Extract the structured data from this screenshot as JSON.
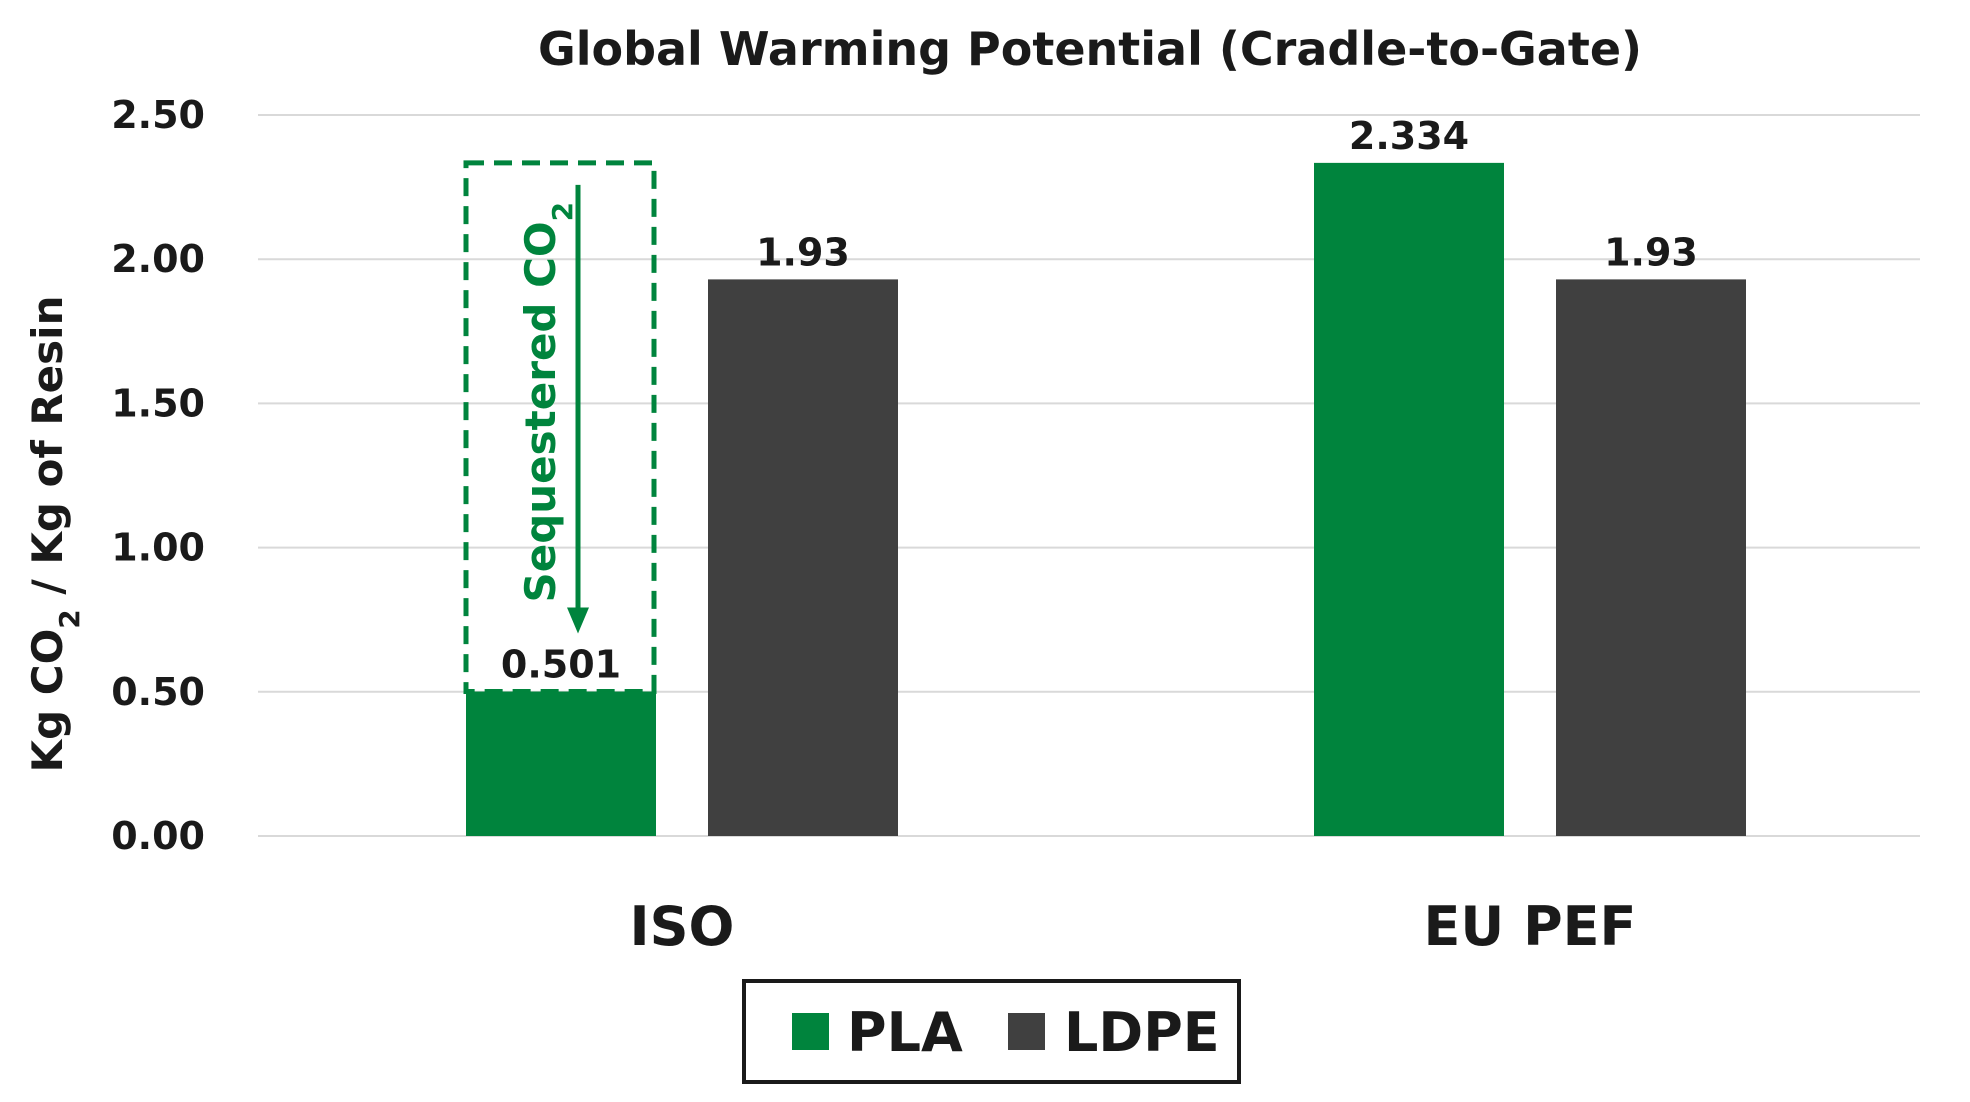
{
  "chart_data": {
    "type": "bar",
    "title": "Global Warming Potential (Cradle-to-Gate)",
    "ylabel_parts": [
      "Kg CO",
      "2",
      " / Kg of Resin"
    ],
    "xlabel": "",
    "ylim": [
      0,
      2.5
    ],
    "yticks": [
      "0.00",
      "0.50",
      "1.00",
      "1.50",
      "2.00",
      "2.50"
    ],
    "ytick_values": [
      0,
      0.5,
      1.0,
      1.5,
      2.0,
      2.5
    ],
    "grid": true,
    "categories": [
      "ISO",
      "EU PEF"
    ],
    "series": [
      {
        "name": "PLA",
        "color": "#00843d",
        "values": [
          0.501,
          2.334
        ],
        "labels": [
          "0.501",
          "2.334"
        ]
      },
      {
        "name": "LDPE",
        "color": "#404040",
        "values": [
          1.93,
          1.93
        ],
        "labels": [
          "1.93",
          "1.93"
        ]
      }
    ],
    "annotation": {
      "text_parts": [
        "Sequestered CO",
        "2"
      ],
      "color": "#00843d",
      "category": "ISO",
      "series": "PLA",
      "from_value": 2.334,
      "to_value": 0.501
    },
    "legend": {
      "placement": "bottom-center",
      "entries": [
        "PLA",
        "LDPE"
      ]
    }
  }
}
